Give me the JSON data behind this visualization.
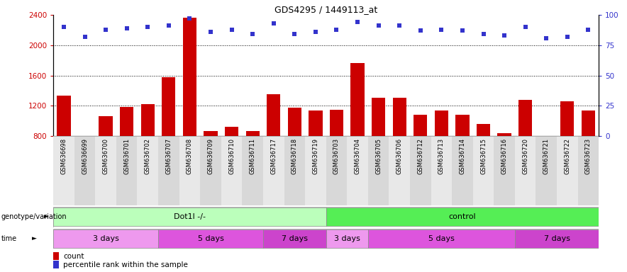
{
  "title": "GDS4295 / 1449113_at",
  "samples": [
    "GSM636698",
    "GSM636699",
    "GSM636700",
    "GSM636701",
    "GSM636702",
    "GSM636707",
    "GSM636708",
    "GSM636709",
    "GSM636710",
    "GSM636711",
    "GSM636717",
    "GSM636718",
    "GSM636719",
    "GSM636703",
    "GSM636704",
    "GSM636705",
    "GSM636706",
    "GSM636712",
    "GSM636713",
    "GSM636714",
    "GSM636715",
    "GSM636716",
    "GSM636720",
    "GSM636721",
    "GSM636722",
    "GSM636723"
  ],
  "counts": [
    1330,
    790,
    1060,
    1180,
    1220,
    1580,
    2360,
    870,
    920,
    870,
    1350,
    1175,
    1140,
    1150,
    1760,
    1310,
    1310,
    1080,
    1140,
    1080,
    960,
    840,
    1280,
    790,
    1260,
    1140
  ],
  "percentile": [
    90,
    82,
    88,
    89,
    90,
    91,
    97,
    86,
    88,
    84,
    93,
    84,
    86,
    88,
    94,
    91,
    91,
    87,
    88,
    87,
    84,
    83,
    90,
    81,
    82,
    88
  ],
  "ymin": 800,
  "ymax": 2400,
  "yticks_left": [
    800,
    1200,
    1600,
    2000,
    2400
  ],
  "yticks_right": [
    0,
    25,
    50,
    75,
    100
  ],
  "bar_color": "#cc0000",
  "dot_color": "#3333cc",
  "genotype_groups": [
    {
      "label": "Dot1l -/-",
      "start": 0,
      "end": 13,
      "color": "#bbffbb"
    },
    {
      "label": "control",
      "start": 13,
      "end": 26,
      "color": "#55ee55"
    }
  ],
  "time_groups": [
    {
      "label": "3 days",
      "start": 0,
      "end": 5,
      "color": "#ee99ee"
    },
    {
      "label": "5 days",
      "start": 5,
      "end": 10,
      "color": "#dd55dd"
    },
    {
      "label": "7 days",
      "start": 10,
      "end": 13,
      "color": "#cc44cc"
    },
    {
      "label": "3 days",
      "start": 13,
      "end": 15,
      "color": "#ee99ee"
    },
    {
      "label": "5 days",
      "start": 15,
      "end": 22,
      "color": "#dd55dd"
    },
    {
      "label": "7 days",
      "start": 22,
      "end": 26,
      "color": "#cc44cc"
    }
  ],
  "legend_count_color": "#cc0000",
  "legend_dot_color": "#3333cc",
  "bg_color": "#ffffff",
  "label_row1": "genotype/variation",
  "label_row2": "time"
}
